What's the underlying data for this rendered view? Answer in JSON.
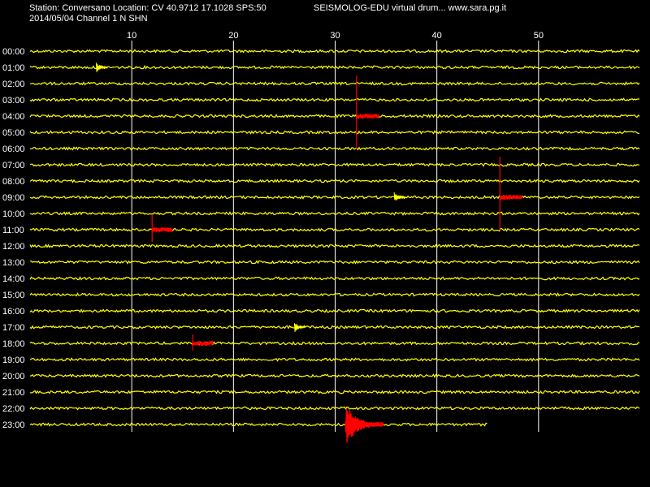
{
  "header": {
    "station_line": "Station: Conversano Location: CV 40.9712 17.1028 SPS:50",
    "date_line": "2014/05/04  Channel 1 N SHN",
    "title": "SEISMOLOG-EDU virtual drum... www.sara.pg.it"
  },
  "colors": {
    "background": "#000000",
    "trace": "#ffff00",
    "event": "#ff0000",
    "grid": "#ffffff",
    "text": "#ffffff"
  },
  "chart_data": {
    "type": "line",
    "x_unit": "minutes",
    "xlim": [
      0,
      60
    ],
    "x_ticks": [
      "10",
      "20",
      "30",
      "40",
      "50"
    ],
    "x_tick_values": [
      10,
      20,
      30,
      40,
      50
    ],
    "grid": "vertical",
    "rows": [
      "00:00",
      "01:00",
      "02:00",
      "03:00",
      "04:00",
      "05:00",
      "06:00",
      "07:00",
      "08:00",
      "09:00",
      "10:00",
      "11:00",
      "12:00",
      "13:00",
      "14:00",
      "15:00",
      "16:00",
      "17:00",
      "18:00",
      "19:00",
      "20:00",
      "21:00",
      "22:00",
      "23:00"
    ],
    "last_row_end_minute": 45,
    "events": [
      {
        "row": "04:00",
        "minute": 32.1,
        "duration_min": 2.2,
        "peak": "large"
      },
      {
        "row": "09:00",
        "minute": 46.2,
        "duration_min": 2.2,
        "peak": "large"
      },
      {
        "row": "11:00",
        "minute": 12.0,
        "duration_min": 2.0,
        "peak": "medium"
      },
      {
        "row": "18:00",
        "minute": 16.0,
        "duration_min": 2.0,
        "peak": "small"
      },
      {
        "row": "23:00",
        "minute": 31.0,
        "duration_min": 3.8,
        "peak": "strong"
      }
    ],
    "minor_bursts": [
      {
        "row": "01:00",
        "minute": 6.5
      },
      {
        "row": "09:00",
        "minute": 35.8
      },
      {
        "row": "17:00",
        "minute": 26.0
      }
    ]
  }
}
